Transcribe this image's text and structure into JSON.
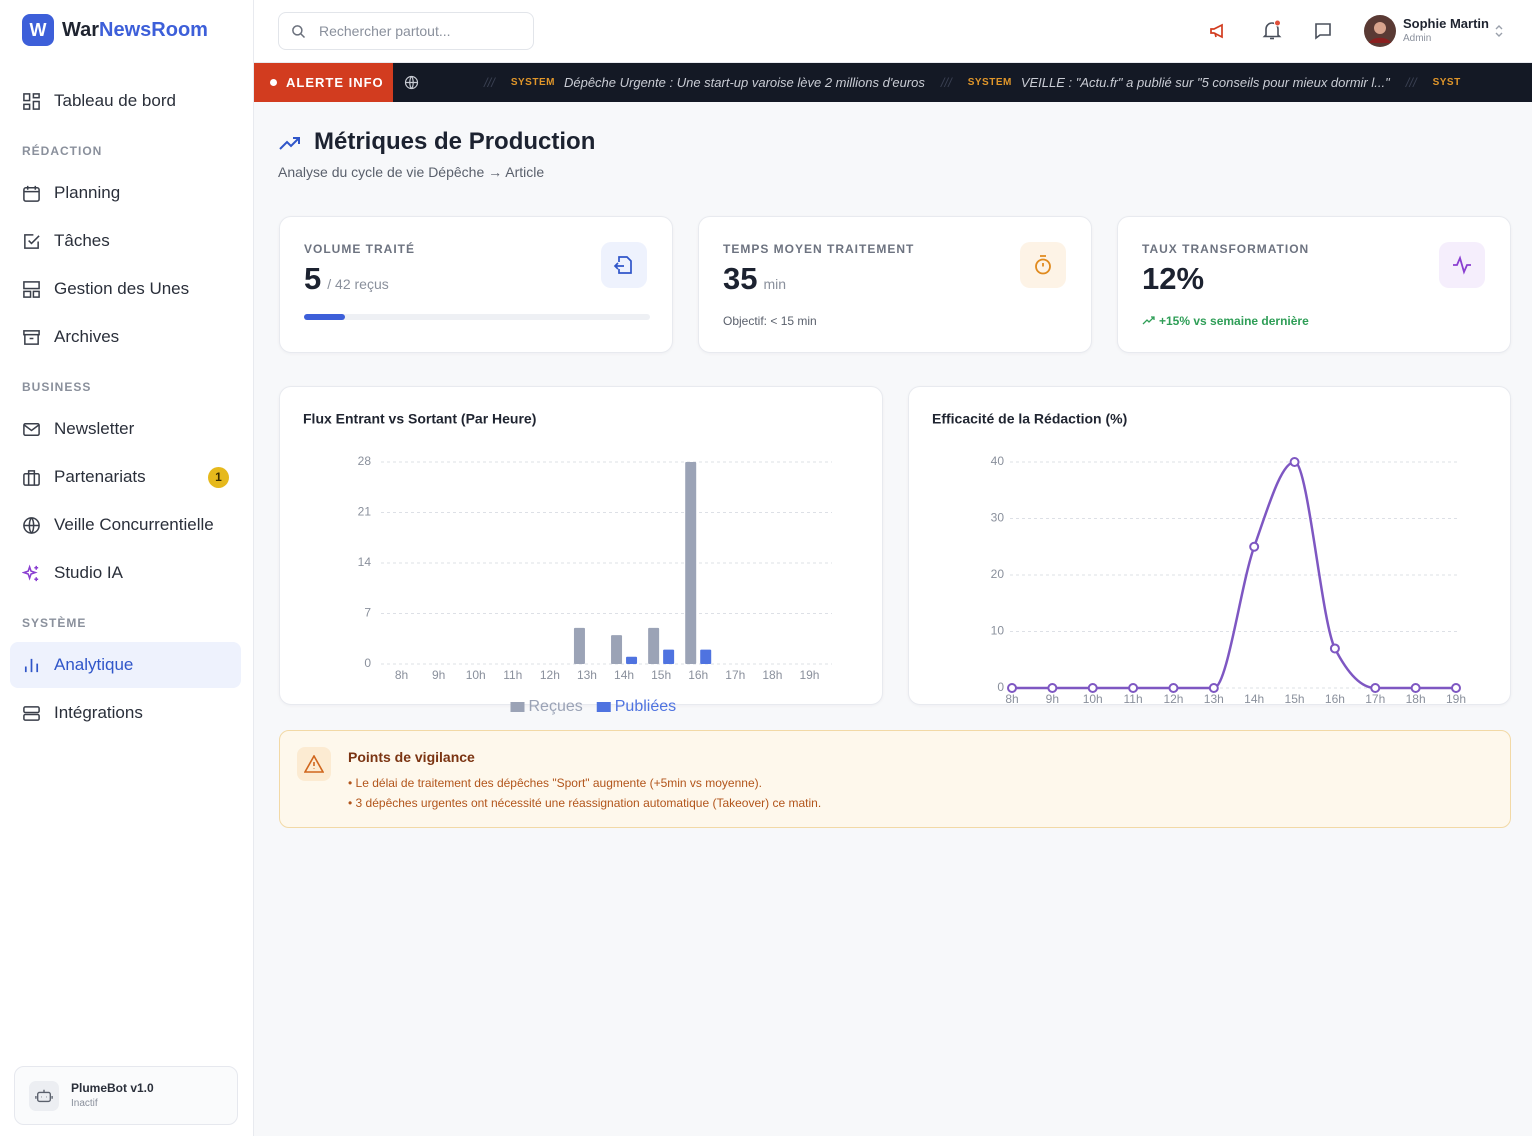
{
  "sidebar": {
    "logo": "W",
    "brand": [
      "War",
      "NewsRoom"
    ],
    "home": "Tableau de bord",
    "groups": [
      {
        "title": "RÉDACTION",
        "items": [
          "Planning",
          "Tâches",
          "Gestion des Unes",
          "Archives"
        ]
      },
      {
        "title": "BUSINESS",
        "items": [
          "Newsletter",
          "Partenariats",
          "Veille Concurrentielle",
          "Studio IA"
        ],
        "badge": "1"
      },
      {
        "title": "SYSTÈME",
        "items": [
          "Analytique",
          "Intégrations"
        ]
      }
    ],
    "bot": {
      "name": "PlumeBot v1.0",
      "status": "Inactif"
    }
  },
  "header": {
    "search": "Rechercher partout...",
    "user": {
      "name": "Sophie Martin",
      "role": "Admin"
    }
  },
  "ticker": {
    "label": "ALERTE INFO",
    "items": [
      {
        "source": "SYSTEM",
        "text": "Dépêche Urgente : Une start-up varoise lève 2 millions d'euros"
      },
      {
        "source": "SYSTEM",
        "text": "VEILLE : \"Actu.fr\" a publié sur \"5 conseils pour mieux dormir l...\""
      },
      {
        "source": "SYST",
        "text": ""
      }
    ]
  },
  "page": {
    "title": "Métriques de Production",
    "subtitle": "Analyse du cycle de vie Dépêche → Article"
  },
  "kpis": [
    {
      "label": "VOLUME TRAITÉ",
      "value": "5",
      "unit": "/ 42 reçus"
    },
    {
      "label": "TEMPS MOYEN TRAITEMENT",
      "value": "35",
      "unit": "min",
      "note": "Objectif: < 15 min"
    },
    {
      "label": "TAUX TRANSFORMATION",
      "value": "12%",
      "note": "+15% vs semaine dernière"
    }
  ],
  "chart_data": [
    {
      "type": "bar",
      "title": "Flux Entrant vs Sortant (Par Heure)",
      "categories": [
        "8h",
        "9h",
        "10h",
        "11h",
        "12h",
        "13h",
        "14h",
        "15h",
        "16h",
        "17h",
        "18h",
        "19h"
      ],
      "series": [
        {
          "name": "Reçues",
          "color": "#9ba3b6",
          "values": [
            0,
            0,
            0,
            0,
            0,
            5,
            4,
            5,
            28,
            0,
            0,
            0
          ]
        },
        {
          "name": "Publiées",
          "color": "#4f73e0",
          "values": [
            0,
            0,
            0,
            0,
            0,
            0,
            1,
            2,
            2,
            0,
            0,
            0
          ]
        }
      ],
      "ylim": [
        0,
        28
      ],
      "yticks": [
        0,
        7,
        14,
        21,
        28
      ],
      "grid": true
    },
    {
      "type": "line",
      "title": "Efficacité de la Rédaction (%)",
      "categories": [
        "8h",
        "9h",
        "10h",
        "11h",
        "12h",
        "13h",
        "14h",
        "15h",
        "16h",
        "17h",
        "18h",
        "19h"
      ],
      "values": [
        0,
        0,
        0,
        0,
        0,
        0,
        25,
        40,
        7,
        0,
        0,
        0
      ],
      "color": "#7e57c2",
      "ylim": [
        0,
        40
      ],
      "yticks": [
        0,
        10,
        20,
        30,
        40
      ],
      "grid": true
    }
  ],
  "alerts": {
    "title": "Points de vigilance",
    "items": [
      "• Le délai de traitement des dépêches \"Sport\" augmente (+5min vs moyenne).",
      "• 3 dépêches urgentes ont nécessité une réassignation automatique (Takeover) ce matin."
    ]
  }
}
